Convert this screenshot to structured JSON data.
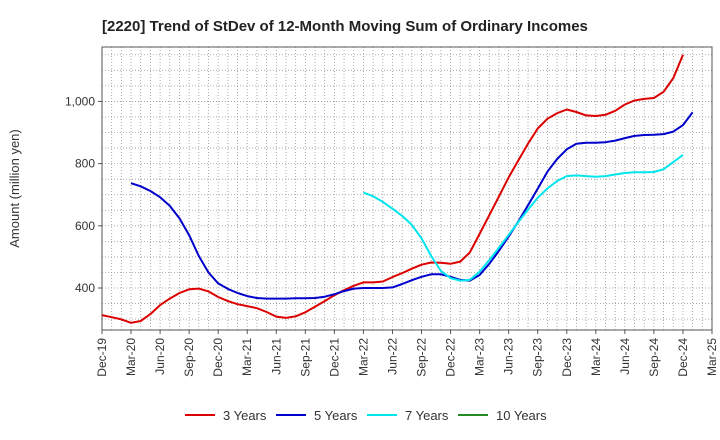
{
  "title": "[2220]  Trend of StDev of 12-Month Moving Sum of Ordinary Incomes",
  "chart_data": {
    "type": "line",
    "title": "[2220]  Trend of StDev of 12-Month Moving Sum of Ordinary Incomes",
    "xlabel": "",
    "ylabel": "Amount (million yen)",
    "ylim": [
      265,
      1175
    ],
    "yticks": [
      400,
      600,
      800,
      1000
    ],
    "ytick_labels": [
      "400",
      "600",
      "800",
      "1,000"
    ],
    "xlim": [
      "2019-12",
      "2025-03"
    ],
    "xticks": [
      "2019-12",
      "2020-03",
      "2020-06",
      "2020-09",
      "2020-12",
      "2021-03",
      "2021-06",
      "2021-09",
      "2021-12",
      "2022-03",
      "2022-06",
      "2022-09",
      "2022-12",
      "2023-03",
      "2023-06",
      "2023-09",
      "2023-12",
      "2024-03",
      "2024-06",
      "2024-09",
      "2024-12",
      "2025-03"
    ],
    "xtick_labels": [
      "Dec-19",
      "Mar-20",
      "Jun-20",
      "Sep-20",
      "Dec-20",
      "Mar-21",
      "Jun-21",
      "Sep-21",
      "Dec-21",
      "Mar-22",
      "Jun-22",
      "Sep-22",
      "Dec-22",
      "Mar-23",
      "Jun-23",
      "Sep-23",
      "Dec-23",
      "Mar-24",
      "Jun-24",
      "Sep-24",
      "Dec-24",
      "Mar-25"
    ],
    "grid": true,
    "legend_position": "bottom",
    "series": [
      {
        "name": "3 Years",
        "color": "#dd0000",
        "start": "2019-12",
        "values": [
          313,
          306,
          299,
          288,
          294,
          316,
          345,
          366,
          384,
          396,
          398,
          389,
          371,
          358,
          348,
          342,
          335,
          323,
          308,
          304,
          309,
          322,
          340,
          358,
          377,
          393,
          407,
          418,
          418,
          421,
          435,
          448,
          462,
          475,
          482,
          481,
          478,
          485,
          515,
          574,
          634,
          695,
          756,
          810,
          864,
          913,
          944,
          962,
          974,
          966,
          955,
          953,
          957,
          970,
          990,
          1003,
          1008,
          1011,
          1031,
          1075,
          1150
        ]
      },
      {
        "name": "5 Years",
        "color": "#0000cc",
        "start": "2020-03",
        "values": [
          737,
          727,
          712,
          692,
          664,
          624,
          570,
          503,
          450,
          415,
          397,
          384,
          374,
          368,
          366,
          366,
          366,
          367,
          367,
          368,
          372,
          380,
          390,
          398,
          400,
          400,
          400,
          402,
          413,
          425,
          436,
          444,
          444,
          436,
          426,
          424,
          442,
          478,
          520,
          566,
          614,
          666,
          719,
          774,
          815,
          846,
          864,
          867,
          867,
          869,
          874,
          882,
          889,
          892,
          893,
          895,
          903,
          924,
          965
        ]
      },
      {
        "name": "7 Years",
        "color": "#00e5ee",
        "start": "2022-03",
        "values": [
          707,
          695,
          677,
          655,
          632,
          603,
          560,
          503,
          455,
          432,
          424,
          426,
          452,
          490,
          530,
          571,
          612,
          652,
          690,
          720,
          744,
          760,
          762,
          760,
          758,
          760,
          765,
          770,
          772,
          772,
          773,
          782,
          805,
          828
        ]
      },
      {
        "name": "10 Years",
        "color": "#228b22",
        "start": "2025-03",
        "values": []
      }
    ]
  }
}
